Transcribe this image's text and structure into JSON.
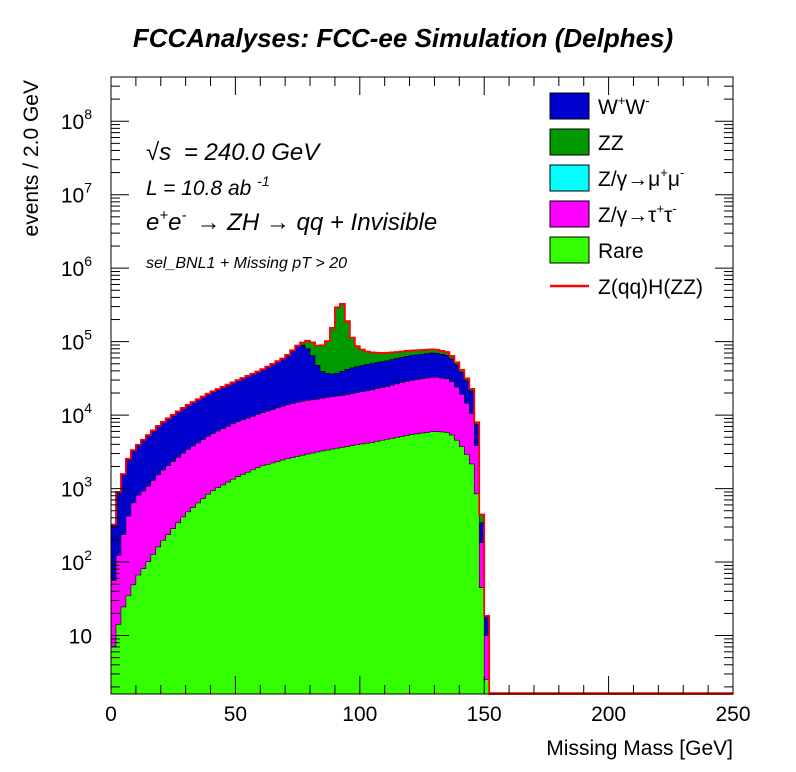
{
  "title": "FCCAnalyses: FCC-ee Simulation (Delphes)",
  "annotations": {
    "sqrt_s_symbol": "√s",
    "sqrt_s_text": "= 240.0 GeV",
    "lumi_text": "L = 10.8 ab",
    "lumi_exp": "-1",
    "process_e1": "e",
    "process_sup1": "+",
    "process_e2": "e",
    "process_sup2": "-",
    "process_rest": "→ ZH  → qq + Invisible",
    "selection": "sel_BNL1 + Missing pT > 20"
  },
  "colors": {
    "WW": "#0000cc",
    "ZZ": "#009900",
    "Zmumu": "#00ffff",
    "Ztautau": "#ff00ff",
    "Rare": "#33ff00",
    "signal": "#ff0000",
    "outline": "#000000"
  },
  "legend": [
    {
      "key": "WW",
      "base": "W",
      "sup1": "+",
      "mid": "W",
      "sup2": "-"
    },
    {
      "key": "ZZ",
      "label": "ZZ"
    },
    {
      "key": "Zmumu",
      "base": "Z/γ→μ",
      "sup1": "+",
      "mid": "μ",
      "sup2": "-"
    },
    {
      "key": "Ztautau",
      "base": "Z/γ→τ",
      "sup1": "+",
      "mid": "τ",
      "sup2": "-"
    },
    {
      "key": "Rare",
      "label": "Rare"
    },
    {
      "key": "signal",
      "label": "Z(qq)H(ZZ)",
      "line": true
    }
  ],
  "chart_data": {
    "type": "area",
    "stacked": true,
    "title": "FCCAnalyses: FCC-ee Simulation (Delphes)",
    "xlabel": "Missing Mass [GeV]",
    "ylabel": "events / 2.0 GeV",
    "xlim": [
      0,
      250
    ],
    "ylim": [
      1.6,
      400000000
    ],
    "ylog": true,
    "bin_width": 2.0,
    "x_ticks": [
      0,
      50,
      100,
      150,
      200,
      250
    ],
    "y_ticks": [
      {
        "value": 10,
        "base": "10",
        "exp": ""
      },
      {
        "value": 100,
        "base": "10",
        "exp": "2"
      },
      {
        "value": 1000,
        "base": "10",
        "exp": "3"
      },
      {
        "value": 10000,
        "base": "10",
        "exp": "4"
      },
      {
        "value": 100000,
        "base": "10",
        "exp": "5"
      },
      {
        "value": 1000000,
        "base": "10",
        "exp": "6"
      },
      {
        "value": 10000000,
        "base": "10",
        "exp": "7"
      },
      {
        "value": 100000000,
        "base": "10",
        "exp": "8"
      }
    ],
    "cumulative_top": {
      "x": [
        0,
        2,
        4,
        6,
        8,
        10,
        14,
        20,
        30,
        40,
        50,
        60,
        70,
        76,
        80,
        84,
        86,
        88,
        90,
        92,
        94,
        96,
        98,
        100,
        104,
        110,
        120,
        130,
        136,
        140,
        144,
        146,
        148,
        150,
        152,
        250
      ],
      "y": [
        120,
        600,
        1000,
        1800,
        2500,
        2900,
        4000,
        6000,
        10000,
        15000,
        21000,
        30000,
        48000,
        80000,
        90000,
        70000,
        75000,
        95000,
        200000,
        380000,
        250000,
        120000,
        75000,
        60000,
        50000,
        46000,
        46000,
        46000,
        40000,
        25000,
        15000,
        10000,
        1700,
        17,
        0,
        0
      ],
      "series": [
        {
          "name": "W+W-",
          "key": "WW",
          "y": [
            120,
            600,
            1000,
            1800,
            2500,
            2900,
            4000,
            6000,
            10000,
            15000,
            21000,
            30000,
            48000,
            80000,
            60000,
            25000,
            20000,
            19000,
            18000,
            20000,
            22000,
            24000,
            25000,
            26000,
            28000,
            30000,
            35000,
            38000,
            33000,
            22000,
            13000,
            9000,
            1500,
            17,
            0,
            0
          ]
        },
        {
          "name": "ZZ",
          "key": "ZZ",
          "y": [
            0,
            0,
            0,
            0,
            0,
            0,
            0,
            0,
            0,
            0,
            0,
            0,
            0,
            0,
            30000,
            45000,
            55000,
            76000,
            182000,
            360000,
            228000,
            96000,
            50000,
            34000,
            22000,
            16000,
            11000,
            8000,
            7000,
            3000,
            2000,
            1000,
            200,
            0,
            0,
            0
          ]
        },
        {
          "name": "Z/γ→τ+τ-",
          "key": "Ztautau",
          "y": [
            30,
            80,
            150,
            300,
            500,
            700,
            900,
            1500,
            2800,
            4500,
            6500,
            8500,
            11000,
            12500,
            13000,
            13500,
            14000,
            14200,
            14500,
            14800,
            15000,
            15500,
            16000,
            16500,
            17500,
            19500,
            24000,
            27000,
            25000,
            18000,
            10000,
            7000,
            1300,
            15,
            0,
            0
          ]
        },
        {
          "name": "Rare",
          "key": "Rare",
          "y": [
            5,
            10,
            20,
            30,
            40,
            60,
            90,
            180,
            450,
            900,
            1400,
            2000,
            2500,
            2800,
            3000,
            3200,
            3300,
            3400,
            3500,
            3600,
            3700,
            3800,
            3900,
            4000,
            4200,
            4600,
            5400,
            6000,
            5800,
            4200,
            2600,
            1800,
            400,
            5,
            0,
            0
          ]
        }
      ]
    }
  },
  "xaxis_label": "Missing Mass [GeV]",
  "yaxis_label": "events / 2.0 GeV"
}
